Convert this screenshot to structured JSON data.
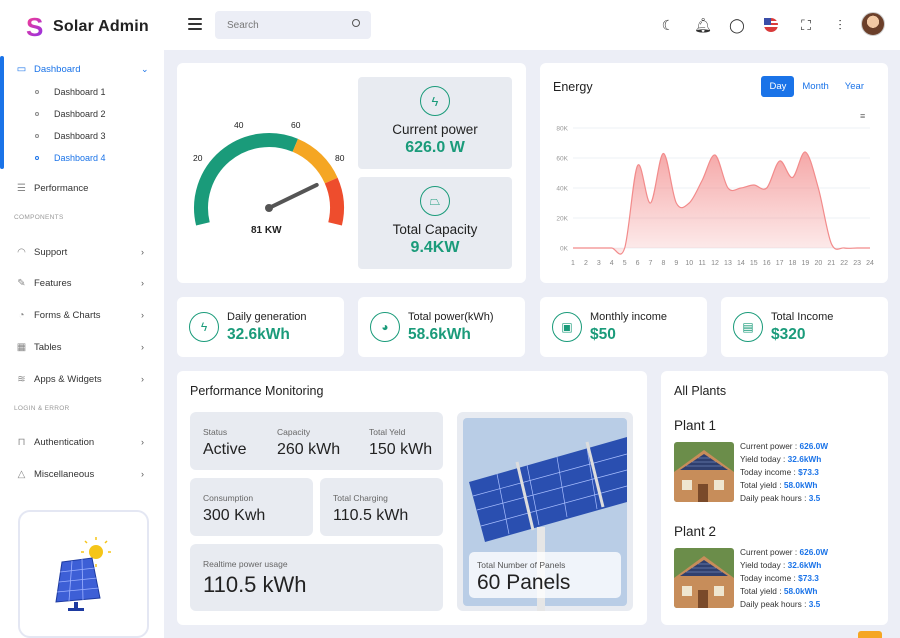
{
  "app": {
    "name": "Solar Admin",
    "logo_letter": "S"
  },
  "sidebar": {
    "dashboard": "Dashboard",
    "sub_items": [
      "Dashboard 1",
      "Dashboard 2",
      "Dashboard 3",
      "Dashboard 4"
    ],
    "performance": "Performance",
    "section_components": "COMPONENTS",
    "components": [
      "Support",
      "Features",
      "Forms & Charts",
      "Tables",
      "Apps & Widgets"
    ],
    "section_login": "LOGIN & ERROR",
    "login_items": [
      "Authentication",
      "Miscellaneous"
    ]
  },
  "header": {
    "search_placeholder": "Search"
  },
  "gauge": {
    "value": 81,
    "label": "81 KW",
    "ticks": [
      "20",
      "40",
      "60",
      "80"
    ],
    "colors": {
      "green": "#1a9b7a",
      "orange": "#f5a623",
      "red": "#ee4d2d"
    }
  },
  "current_power": {
    "title": "Current power",
    "value": "626.0 W"
  },
  "total_capacity": {
    "title": "Total Capacity",
    "value": "9.4KW"
  },
  "energy": {
    "title": "Energy",
    "tabs": [
      "Day",
      "Month",
      "Year"
    ],
    "active_tab": "Day"
  },
  "chart_data": {
    "type": "area",
    "title": "Energy",
    "x": [
      1,
      2,
      3,
      4,
      5,
      6,
      7,
      8,
      9,
      10,
      11,
      12,
      13,
      14,
      15,
      16,
      17,
      18,
      19,
      20,
      21,
      22,
      23,
      24
    ],
    "series": [
      {
        "values": [
          0,
          0,
          0,
          0,
          0,
          55,
          30,
          63,
          30,
          30,
          45,
          62,
          40,
          40,
          42,
          40,
          58,
          47,
          64,
          40,
          3,
          0,
          0,
          0
        ]
      }
    ],
    "y_ticks": [
      "0K",
      "20K",
      "40K",
      "60K",
      "80K"
    ],
    "ylim": [
      0,
      80
    ],
    "grid": true,
    "color": "#f28b8b"
  },
  "stats": [
    {
      "label": "Daily generation",
      "value": "32.6kWh",
      "icon": "bolt-icon"
    },
    {
      "label": "Total power(kWh)",
      "value": "58.6kWh",
      "icon": "pie-chart-icon"
    },
    {
      "label": "Monthly income",
      "value": "$50",
      "icon": "money-icon"
    },
    {
      "label": "Total Income",
      "value": "$320",
      "icon": "wallet-icon"
    }
  ],
  "performance": {
    "title": "Performance Monitoring",
    "status_key": "Status",
    "status_val": "Active",
    "capacity_key": "Capacity",
    "capacity_val": "260 kWh",
    "yield_key": "Total Yeld",
    "yield_val": "150 kWh",
    "consumption_key": "Consumption",
    "consumption_val": "300 Kwh",
    "charging_key": "Total Charging",
    "charging_val": "110.5 kWh",
    "realtime_key": "Realtime power usage",
    "realtime_val": "110.5 kWh",
    "panels_key": "Total Number of Panels",
    "panels_val": "60 Panels"
  },
  "plants": {
    "title": "All Plants",
    "items": [
      {
        "name": "Plant 1",
        "power_k": "Current power :",
        "power_v": "626.0W",
        "yield_today_k": "Yield today :",
        "yield_today_v": "32.6kWh",
        "income_k": "Today income :",
        "income_v": "$73.3",
        "total_yield_k": "Total yield :",
        "total_yield_v": "58.0kWh",
        "peak_k": "Daily peak hours :",
        "peak_v": "3.5"
      },
      {
        "name": "Plant 2",
        "power_k": "Current power :",
        "power_v": "626.0W",
        "yield_today_k": "Yield today :",
        "yield_today_v": "32.6kWh",
        "income_k": "Today income :",
        "income_v": "$73.3",
        "total_yield_k": "Total yield :",
        "total_yield_v": "58.0kWh",
        "peak_k": "Daily peak hours :",
        "peak_v": "3.5"
      }
    ]
  }
}
